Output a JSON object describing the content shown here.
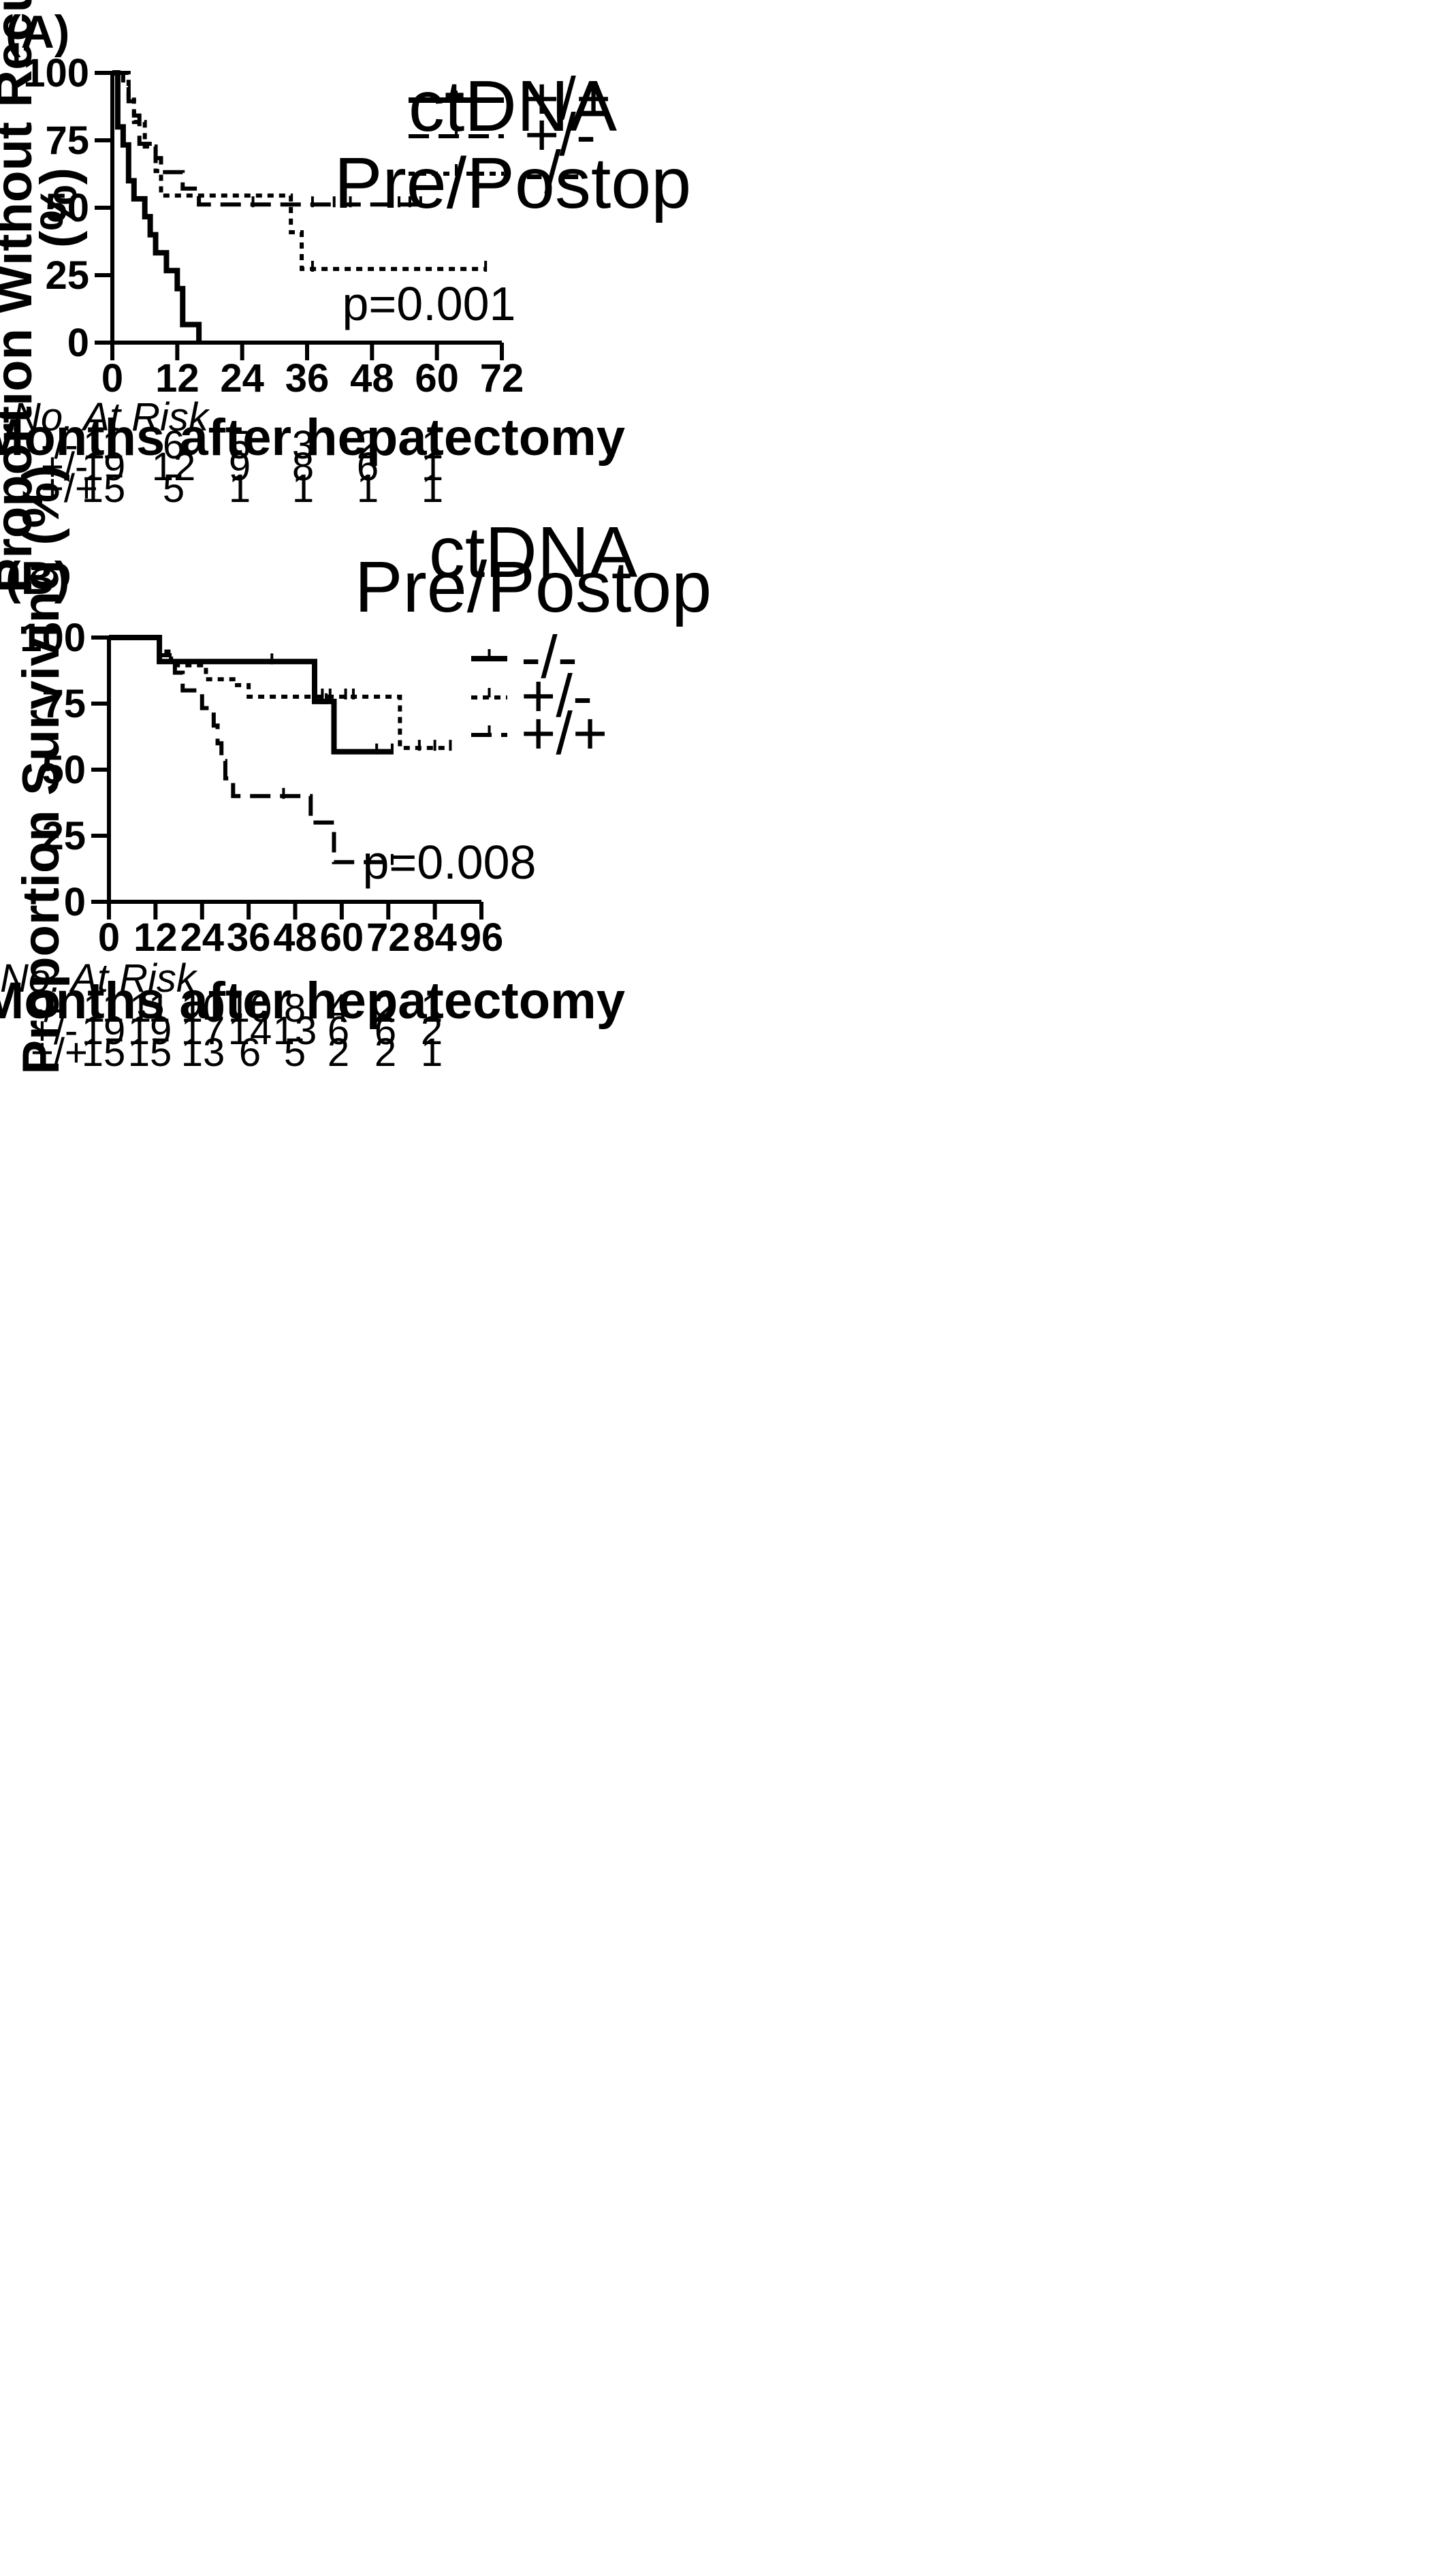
{
  "chart_data": [
    {
      "type": "line",
      "subtype": "kaplan-meier step",
      "panel_label": "(A)",
      "xlabel": "Months after hepatectomy",
      "ylabel_line1": "Proportion Without Recurrence",
      "ylabel_line2": "(%)",
      "xlim": [
        0,
        72
      ],
      "ylim": [
        0,
        100
      ],
      "xticks": [
        0,
        12,
        24,
        36,
        48,
        60,
        72
      ],
      "yticks": [
        0,
        25,
        50,
        75,
        100
      ],
      "grid": false,
      "legend_title_line1": "ctDNA",
      "legend_title_line2": "Pre/Postop",
      "legend_position": "top-right",
      "annotation": "p=0.001",
      "series": [
        {
          "name": "+/+",
          "style": "solid",
          "x": [
            0,
            1,
            2,
            3,
            4,
            6,
            7,
            8,
            10,
            12,
            13,
            16
          ],
          "y": [
            100,
            80,
            73.3,
            60,
            53.3,
            46.7,
            40,
            33.3,
            26.7,
            20,
            6.7,
            0
          ],
          "censor_x": [],
          "censor_y": []
        },
        {
          "name": "+/-",
          "style": "dashed",
          "x": [
            0,
            2,
            3,
            4,
            5,
            8,
            9,
            13,
            16,
            58
          ],
          "y": [
            100,
            94.7,
            89.5,
            84.2,
            73.7,
            68.4,
            63.2,
            57.1,
            51.2,
            51.2
          ],
          "censor_x": [
            26,
            37,
            41,
            44,
            53,
            55,
            57
          ],
          "censor_y": [
            51.2,
            51.2,
            51.2,
            51.2,
            51.2,
            51.2,
            51.2
          ]
        },
        {
          "name": "-/-",
          "style": "dotted",
          "x": [
            0,
            3,
            4,
            6,
            8,
            9,
            33,
            35,
            69
          ],
          "y": [
            100,
            90.9,
            81.8,
            72.7,
            63.6,
            54.5,
            40.9,
            27.3,
            27.3
          ],
          "censor_x": [
            37,
            69
          ],
          "censor_y": [
            27.3,
            27.3
          ]
        }
      ],
      "risk_table": {
        "title": "No. At Risk",
        "rows": [
          {
            "label": "-/-",
            "values": [
              "11",
              "6",
              "5",
              "3",
              "2",
              "1"
            ]
          },
          {
            "label": "+/-",
            "values": [
              "19",
              "12",
              "9",
              "8",
              "6",
              "1"
            ]
          },
          {
            "label": "+/+",
            "values": [
              "15",
              "5",
              "1",
              "1",
              "1",
              "1"
            ]
          }
        ]
      }
    },
    {
      "type": "line",
      "subtype": "kaplan-meier step",
      "panel_label": "(B)",
      "xlabel": "Months after hepatectomy",
      "ylabel_line1": "Proportion Surviving (%)",
      "xlim": [
        0,
        96
      ],
      "ylim": [
        0,
        100
      ],
      "xticks": [
        0,
        12,
        24,
        36,
        48,
        60,
        72,
        84,
        96
      ],
      "yticks": [
        0,
        25,
        50,
        75,
        100
      ],
      "grid": false,
      "legend_title_line1": "ctDNA",
      "legend_title_line2": "Pre/Postop",
      "legend_position": "top-right",
      "annotation": "p=0.008",
      "series": [
        {
          "name": "-/-",
          "style": "solid",
          "x": [
            0,
            13,
            53,
            58,
            73
          ],
          "y": [
            100,
            90.9,
            75.8,
            56.8,
            56.8
          ],
          "censor_x": [
            42,
            55,
            56,
            69,
            73
          ],
          "censor_y": [
            90.9,
            75.8,
            75.8,
            56.8,
            56.8
          ]
        },
        {
          "name": "+/-",
          "style": "dotted",
          "x": [
            0,
            13,
            16,
            18,
            25,
            33,
            36,
            75,
            88
          ],
          "y": [
            100,
            94.7,
            89.5,
            89.5,
            84.2,
            82,
            77.6,
            58.2,
            58.2
          ],
          "censor_x": [
            55,
            57,
            61,
            63,
            80,
            84,
            88
          ],
          "censor_y": [
            77.6,
            77.6,
            77.6,
            77.6,
            58.2,
            58.2,
            58.2
          ]
        },
        {
          "name": "+/+",
          "style": "dashed",
          "x": [
            0,
            13,
            17,
            19,
            21,
            24,
            27,
            28,
            29,
            30,
            32,
            52,
            54,
            58,
            73
          ],
          "y": [
            100,
            93.3,
            86.7,
            80,
            80,
            73.3,
            66.7,
            60,
            53.3,
            46.7,
            40,
            30,
            30,
            15,
            15
          ],
          "censor_x": [
            45,
            73
          ],
          "censor_y": [
            40,
            15
          ]
        }
      ],
      "risk_table": {
        "title": "No. At Risk",
        "rows": [
          {
            "label": "-/-",
            "values": [
              "11",
              "11",
              "10",
              "10",
              "8",
              "4",
              "2",
              "1"
            ]
          },
          {
            "label": "+/-",
            "values": [
              "19",
              "19",
              "17",
              "14",
              "13",
              "6",
              "6",
              "2"
            ]
          },
          {
            "label": "+/+",
            "values": [
              "15",
              "15",
              "13",
              "6",
              "5",
              "2",
              "2",
              "1"
            ]
          }
        ]
      }
    }
  ]
}
